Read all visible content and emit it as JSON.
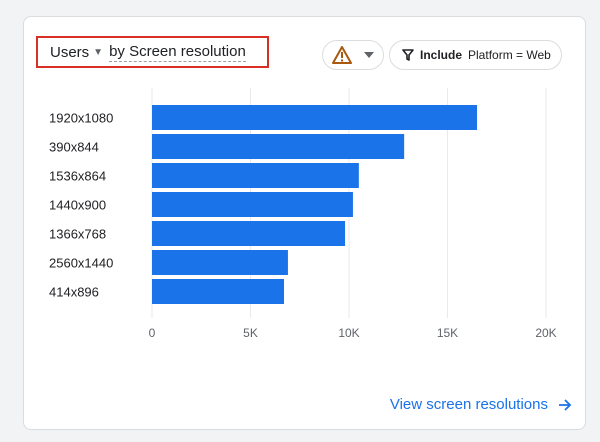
{
  "header": {
    "metric_label": "Users",
    "dimension_label": "by Screen resolution"
  },
  "filter": {
    "include_label": "Include",
    "condition": "Platform = Web"
  },
  "footer": {
    "link_label": "View screen resolutions"
  },
  "icons": {
    "warning": "warning-icon",
    "filter": "filter-icon",
    "caret": "caret-down-icon",
    "arrow": "arrow-right-icon"
  },
  "colors": {
    "bar": "#1a73e8",
    "warning": "#a8590f",
    "highlight_box": "#d93025",
    "link": "#1a73e8"
  },
  "chart_data": {
    "type": "bar",
    "orientation": "horizontal",
    "categories": [
      "1920x1080",
      "390x844",
      "1536x864",
      "1440x900",
      "1366x768",
      "2560x1440",
      "414x896"
    ],
    "values": [
      16500,
      12800,
      10500,
      10200,
      9800,
      6900,
      6700
    ],
    "xlim": [
      0,
      20000
    ],
    "ticks": [
      0,
      5000,
      10000,
      15000,
      20000
    ],
    "tick_labels": [
      "0",
      "5K",
      "10K",
      "15K",
      "20K"
    ],
    "grid": true
  }
}
